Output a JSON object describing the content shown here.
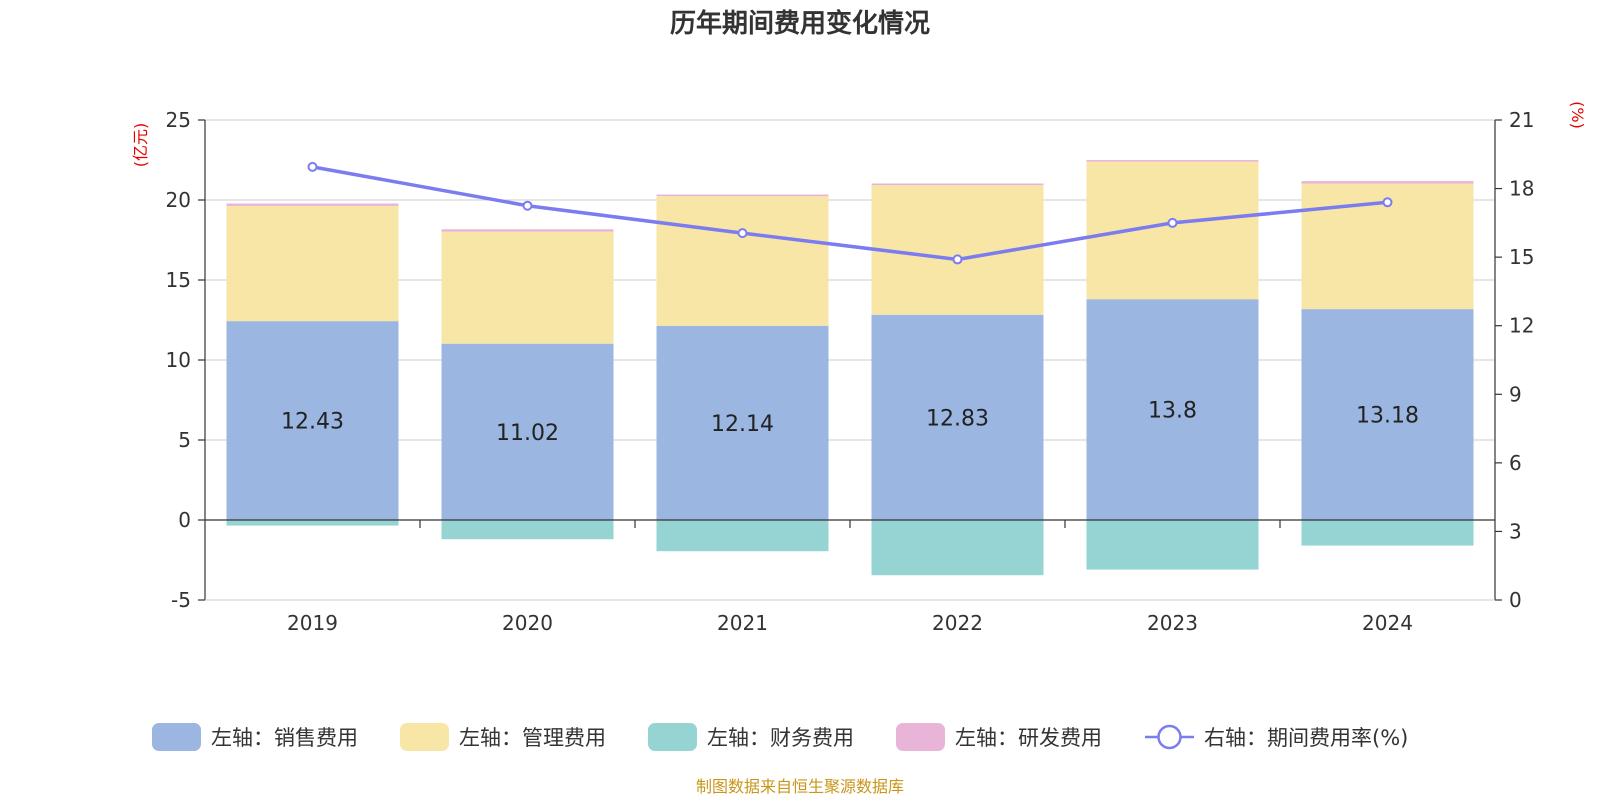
{
  "title": "历年期间费用变化情况",
  "source": "制图数据来自恒生聚源数据库",
  "colors": {
    "sales": "#9bb6e0",
    "admin": "#f7e6a6",
    "finance": "#96d4d4",
    "rd": "#e8b5d8",
    "rate": "#7b7cf0",
    "unit": "#e60000",
    "source": "#c9961a"
  },
  "chart_data": {
    "type": "bar",
    "categories": [
      "2019",
      "2020",
      "2021",
      "2022",
      "2023",
      "2024"
    ],
    "left_axis": {
      "unit": "(亿元)",
      "ylim": [
        -5,
        25
      ],
      "ticks": [
        "-5",
        "0",
        "5",
        "10",
        "15",
        "20",
        "25"
      ]
    },
    "right_axis": {
      "unit": "(%)",
      "ylim": [
        0,
        21
      ],
      "ticks": [
        "0",
        "3",
        "6",
        "9",
        "12",
        "15",
        "18",
        "21"
      ]
    },
    "series": [
      {
        "key": "sales",
        "name": "左轴：销售费用",
        "axis": "left",
        "type": "bar",
        "values": [
          12.43,
          11.02,
          12.14,
          12.83,
          13.8,
          13.18
        ],
        "labels": [
          "12.43",
          "11.02",
          "12.14",
          "12.83",
          "13.8",
          "13.18"
        ]
      },
      {
        "key": "admin",
        "name": "左轴：管理费用",
        "axis": "left",
        "type": "bar",
        "values": [
          7.2,
          7.0,
          8.1,
          8.1,
          8.6,
          7.85
        ]
      },
      {
        "key": "finance",
        "name": "左轴：财务费用",
        "axis": "left",
        "type": "bar",
        "values": [
          -0.35,
          -1.2,
          -1.95,
          -3.45,
          -3.1,
          -1.6
        ]
      },
      {
        "key": "rd",
        "name": "左轴：研发费用",
        "axis": "left",
        "type": "bar",
        "values": [
          0.15,
          0.15,
          0.1,
          0.1,
          0.1,
          0.15
        ]
      },
      {
        "key": "rate",
        "name": "右轴：期间费用率(%)",
        "axis": "right",
        "type": "line",
        "values": [
          18.95,
          17.25,
          16.05,
          14.9,
          16.5,
          17.4
        ]
      }
    ],
    "grid": true,
    "legend_position": "bottom"
  }
}
